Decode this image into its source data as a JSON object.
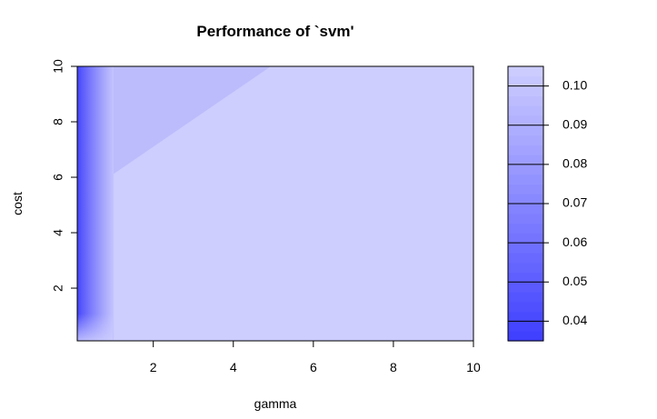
{
  "chart_data": {
    "type": "heatmap",
    "title": "Performance of `svm'",
    "xlabel": "gamma",
    "ylabel": "cost",
    "xlim": [
      0.1,
      10
    ],
    "ylim": [
      0.1,
      10
    ],
    "x_ticks": [
      2,
      4,
      6,
      8,
      10
    ],
    "y_ticks": [
      2,
      4,
      6,
      8,
      10
    ],
    "legend_position": "right",
    "legend": {
      "levels": [
        0.035,
        0.0375,
        0.04,
        0.0425,
        0.045,
        0.0475,
        0.05,
        0.0525,
        0.055,
        0.0575,
        0.06,
        0.0625,
        0.065,
        0.0675,
        0.07,
        0.0725,
        0.075,
        0.0775,
        0.08,
        0.0825,
        0.085,
        0.0875,
        0.09,
        0.0925,
        0.095,
        0.0975,
        0.1,
        0.1025,
        0.105
      ],
      "tick_values": [
        0.04,
        0.05,
        0.06,
        0.07,
        0.08,
        0.09,
        0.1
      ],
      "tick_labels": [
        "0.04",
        "0.05",
        "0.06",
        "0.07",
        "0.08",
        "0.09",
        "0.10"
      ],
      "color_low": "#4040ff",
      "color_high": "#ccccff"
    },
    "regions": [
      {
        "description": "low error near small gamma",
        "gamma_range": [
          0.1,
          1
        ],
        "value_range": [
          0.035,
          0.104
        ]
      },
      {
        "description": "upper-left wedge",
        "corners": [
          [
            1,
            6
          ],
          [
            1,
            10
          ],
          [
            5,
            10
          ]
        ],
        "value": 0.095
      },
      {
        "description": "rest of grid",
        "value": 0.1
      }
    ]
  },
  "colors": {
    "background": "#ffffff",
    "axis": "#000000"
  }
}
